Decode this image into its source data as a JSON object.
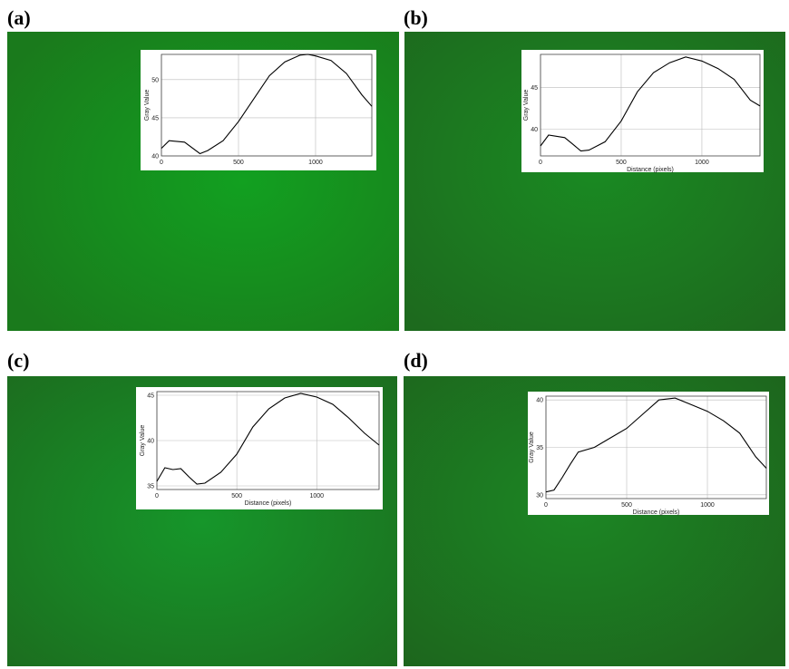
{
  "chart_data": [
    {
      "type": "line",
      "panel_label": "(a)",
      "ylabel": "Gray Value",
      "grid": true,
      "color": "#000000",
      "x": [
        0,
        50,
        150,
        250,
        300,
        400,
        500,
        600,
        700,
        800,
        900,
        950,
        1000,
        1100,
        1200,
        1300,
        1365
      ],
      "values": [
        41,
        42,
        41.8,
        40.3,
        40.7,
        42,
        44.5,
        47.5,
        50.5,
        52.3,
        53.2,
        53.3,
        53.1,
        52.5,
        50.8,
        48,
        46.5
      ],
      "xlim": [
        0,
        1365
      ],
      "ylim": [
        40,
        53.3
      ],
      "xticks": [
        0,
        500,
        1000
      ],
      "yticks": [
        40,
        45,
        50
      ]
    },
    {
      "type": "line",
      "panel_label": "(b)",
      "ylabel": "Gray Value",
      "xlabel": "Distance (pixels)",
      "grid": true,
      "color": "#000000",
      "x": [
        0,
        50,
        150,
        200,
        250,
        300,
        400,
        500,
        600,
        700,
        800,
        900,
        1000,
        1100,
        1200,
        1300,
        1360
      ],
      "values": [
        38,
        39.3,
        39,
        38.2,
        37.4,
        37.5,
        38.5,
        41,
        44.5,
        46.8,
        48,
        48.7,
        48.2,
        47.3,
        46,
        43.5,
        42.8
      ],
      "xlim": [
        0,
        1360
      ],
      "ylim": [
        36.8,
        49
      ],
      "xticks": [
        0,
        500,
        1000
      ],
      "yticks": [
        40,
        45
      ]
    },
    {
      "type": "line",
      "panel_label": "(c)",
      "ylabel": "Gray Value",
      "xlabel": "Distance (pixels)",
      "grid": true,
      "color": "#000000",
      "x": [
        0,
        50,
        100,
        150,
        200,
        250,
        300,
        400,
        500,
        600,
        700,
        800,
        900,
        1000,
        1100,
        1200,
        1300,
        1390
      ],
      "values": [
        35.5,
        37,
        36.8,
        36.9,
        36,
        35.2,
        35.3,
        36.5,
        38.5,
        41.5,
        43.5,
        44.7,
        45.2,
        44.8,
        44,
        42.5,
        40.8,
        39.5
      ],
      "xlim": [
        0,
        1390
      ],
      "ylim": [
        34.6,
        45.4
      ],
      "xticks": [
        0,
        500,
        1000
      ],
      "yticks": [
        35,
        40,
        45
      ]
    },
    {
      "type": "line",
      "panel_label": "(d)",
      "ylabel": "Gray Value",
      "xlabel": "Distance (pixels)",
      "grid": true,
      "color": "#000000",
      "x": [
        0,
        50,
        100,
        150,
        200,
        300,
        400,
        500,
        600,
        700,
        800,
        900,
        1000,
        1100,
        1200,
        1300,
        1365
      ],
      "values": [
        30.3,
        30.5,
        31.8,
        33.2,
        34.5,
        35,
        36,
        37,
        38.5,
        40,
        40.2,
        39.5,
        38.8,
        37.8,
        36.5,
        34,
        32.8
      ],
      "xlim": [
        0,
        1365
      ],
      "ylim": [
        29.6,
        40.4
      ],
      "xticks": [
        0,
        500,
        1000
      ],
      "yticks": [
        30,
        35,
        40
      ]
    }
  ]
}
